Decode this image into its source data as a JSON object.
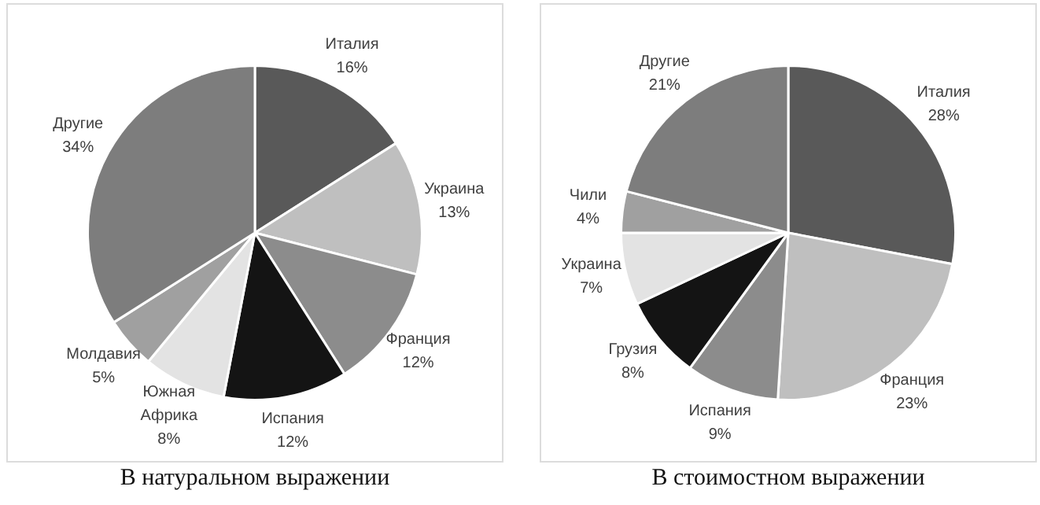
{
  "chart_data": [
    {
      "type": "pie",
      "title": "В натуральном выражении",
      "categories": [
        "Италия",
        "Украина",
        "Франция",
        "Испания",
        "Южная Африка",
        "Молдавия",
        "Другие"
      ],
      "values": [
        16,
        13,
        12,
        12,
        8,
        5,
        34
      ],
      "value_labels": [
        "16%",
        "13%",
        "12%",
        "12%",
        "8%",
        "5%",
        "34%"
      ],
      "colors": [
        "#595959",
        "#bfbfbf",
        "#8c8c8c",
        "#141414",
        "#e3e3e3",
        "#a0a0a0",
        "#7d7d7d"
      ],
      "legend": false
    },
    {
      "type": "pie",
      "title": "В стоимостном выражении",
      "categories": [
        "Италия",
        "Франция",
        "Испания",
        "Грузия",
        "Украина",
        "Чили",
        "Другие"
      ],
      "values": [
        28,
        23,
        9,
        8,
        7,
        4,
        21
      ],
      "value_labels": [
        "28%",
        "23%",
        "9%",
        "8%",
        "7%",
        "4%",
        "21%"
      ],
      "colors": [
        "#595959",
        "#bfbfbf",
        "#8c8c8c",
        "#141414",
        "#e3e3e3",
        "#a0a0a0",
        "#7d7d7d"
      ],
      "legend": false
    }
  ]
}
